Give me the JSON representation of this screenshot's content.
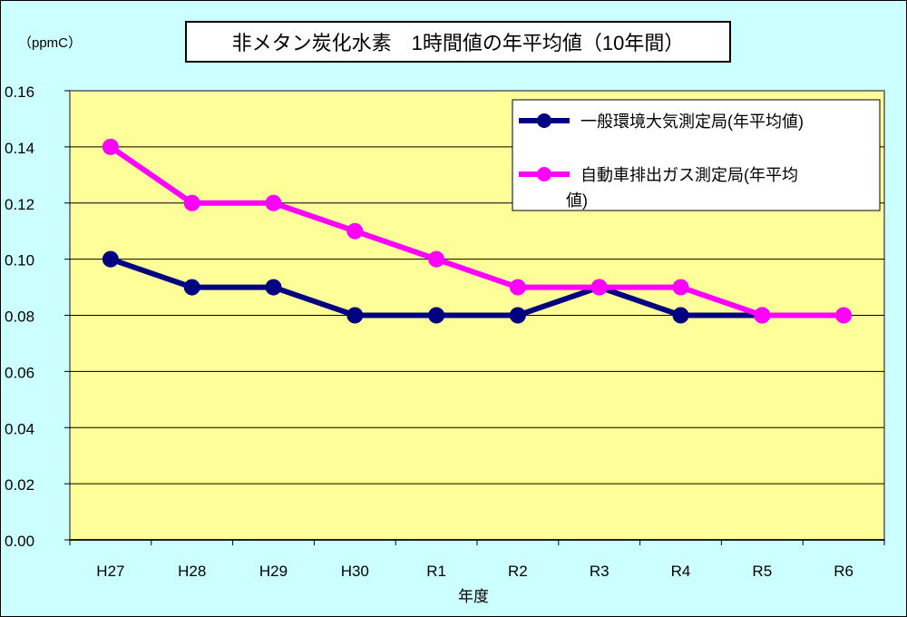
{
  "chart_data": {
    "type": "line",
    "title": "非メタン炭化水素　1時間値の年平均値（10年間）",
    "ylabel": "（ppmC）",
    "xlabel": "年度",
    "categories": [
      "H27",
      "H28",
      "H29",
      "H30",
      "R1",
      "R2",
      "R3",
      "R4",
      "R5",
      "R6"
    ],
    "ylim": [
      0,
      0.16
    ],
    "yticks": [
      "0.00",
      "0.02",
      "0.04",
      "0.06",
      "0.08",
      "0.10",
      "0.12",
      "0.14",
      "0.16"
    ],
    "grid": true,
    "legend_placement": "top-right",
    "series": [
      {
        "name": "一般環境大気測定局(年平均値)",
        "color": "#000080",
        "values": [
          0.1,
          0.09,
          0.09,
          0.08,
          0.08,
          0.08,
          0.09,
          0.08,
          0.08,
          null
        ]
      },
      {
        "name": "自動車排出ガス測定局(年平均値)",
        "color": "#ff00ff",
        "values": [
          0.14,
          0.12,
          0.12,
          0.11,
          0.1,
          0.09,
          0.09,
          0.09,
          0.08,
          0.08
        ]
      }
    ],
    "colors": {
      "background": "#ccffff",
      "plot_area": "#ffff99"
    }
  }
}
